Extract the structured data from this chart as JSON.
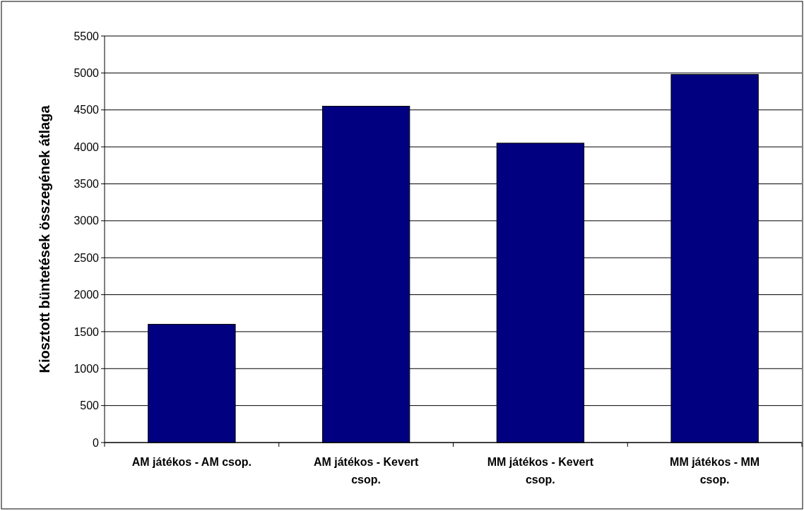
{
  "chart_data": {
    "type": "bar",
    "ylabel": "Kiosztott büntetések összegének átlaga",
    "categories": [
      "AM játékos - AM csop.",
      "AM játékos - Kevert csop.",
      "MM játékos - Kevert csop.",
      "MM játékos - MM csop."
    ],
    "values": [
      1600,
      4550,
      4050,
      4980
    ],
    "color": "#000080",
    "ylim": [
      0,
      5500
    ],
    "yticks": [
      0,
      500,
      1000,
      1500,
      2000,
      2500,
      3000,
      3500,
      4000,
      4500,
      5000,
      5500
    ],
    "grid": "y"
  }
}
